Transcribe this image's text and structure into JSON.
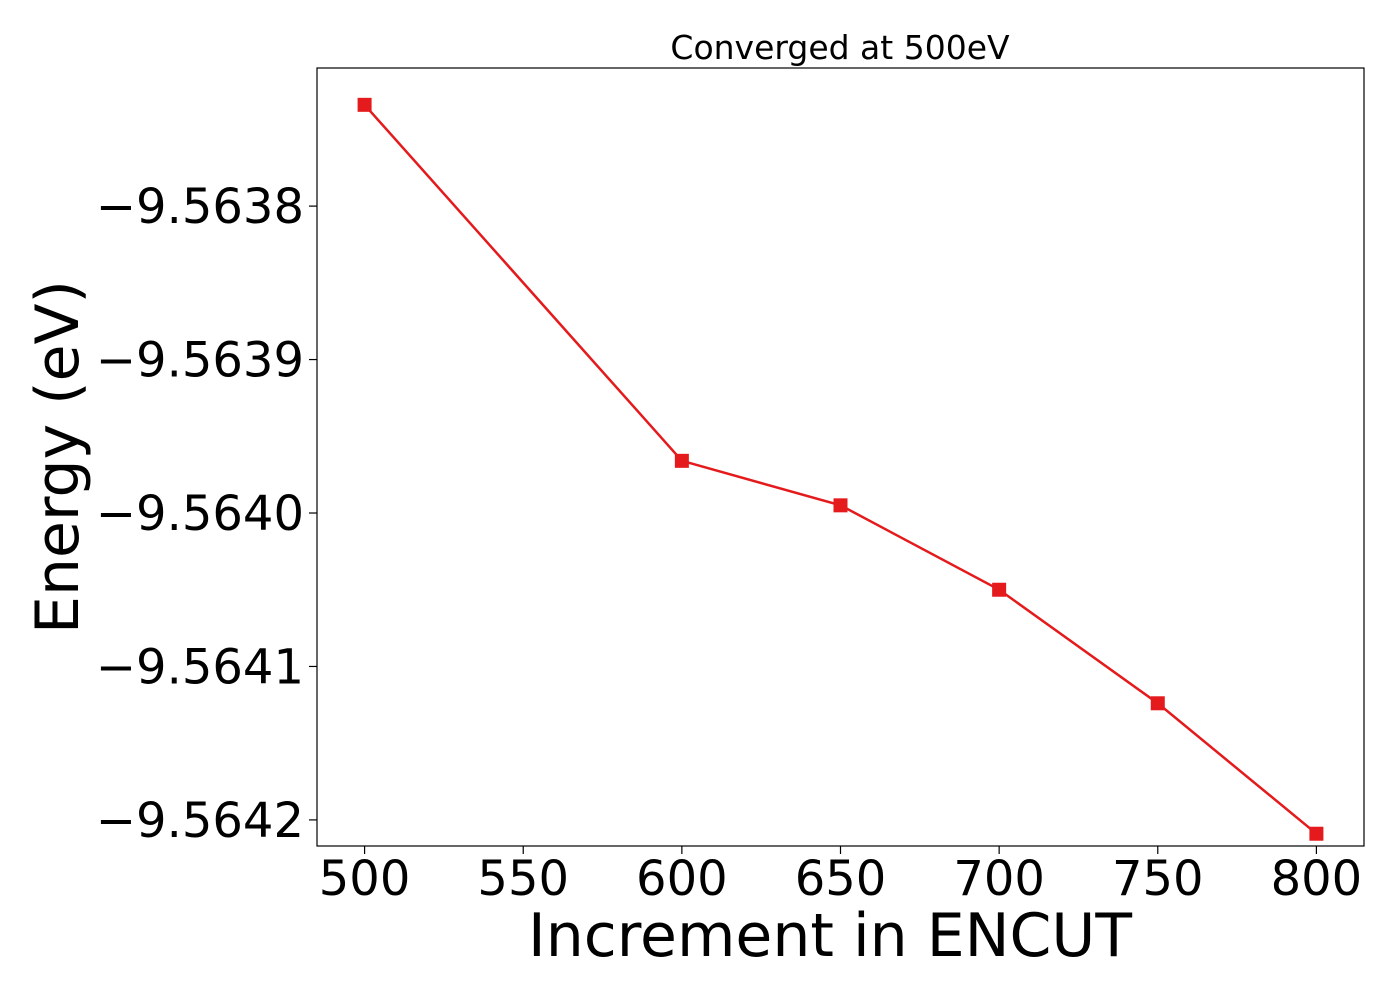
{
  "chart_data": {
    "type": "line",
    "title": "Converged at 500eV",
    "xlabel": "Increment in ENCUT",
    "ylabel": "Energy (eV)",
    "x": [
      500,
      600,
      650,
      700,
      750,
      800
    ],
    "series": [
      {
        "values": [
          -9.563734,
          -9.563966,
          -9.563995,
          -9.56405,
          -9.564124,
          -9.564209
        ],
        "color": "#e41a1c",
        "marker": "square"
      }
    ],
    "xticks": [
      500,
      550,
      600,
      650,
      700,
      750,
      800
    ],
    "xtick_labels": [
      "500",
      "550",
      "600",
      "650",
      "700",
      "750",
      "800"
    ],
    "yticks": [
      -9.5638,
      -9.5639,
      -9.564,
      -9.5641,
      -9.5642
    ],
    "ytick_labels": [
      "−9.5638",
      "−9.5639",
      "−9.5640",
      "−9.5641",
      "−9.5642"
    ],
    "xlim": [
      485,
      815
    ],
    "ylim": [
      -9.564217,
      -9.56371
    ],
    "grid": false,
    "legend": "none"
  }
}
